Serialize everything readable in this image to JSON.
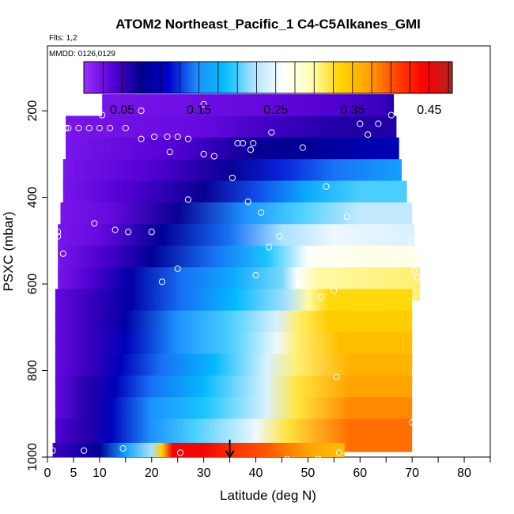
{
  "chart_data": {
    "type": "heatmap",
    "title": "ATOM2 Northeast_Pacific_1 C4-C5Alkanes_GMI",
    "flights_label": "Flts: 1,2",
    "mmdd_label": "MMDD: 0126,0129",
    "xlabel": "Latitude (deg N)",
    "ylabel": "PSXC (mbar)",
    "xlim": [
      0,
      85
    ],
    "ylim": [
      1000,
      50
    ],
    "y_reversed": true,
    "x_ticks": [
      0,
      5,
      10,
      20,
      30,
      40,
      50,
      60,
      70,
      80
    ],
    "x_minor_ticks": [
      15,
      25,
      35,
      45,
      55,
      65,
      75,
      85
    ],
    "y_ticks": [
      200,
      400,
      600,
      800,
      1000
    ],
    "grid": false,
    "colorbar": {
      "min": 0.0,
      "max": 0.48,
      "tick_values": [
        0.05,
        0.15,
        0.25,
        0.35,
        0.45
      ],
      "tick_labels": [
        "0.05",
        "0.15",
        "0.25",
        "0.35",
        "0.45"
      ],
      "boundaries": [
        0.1,
        0.2,
        0.3,
        0.4
      ],
      "colors": [
        "#9b30ff",
        "#5a00d8",
        "#00008b",
        "#0000cd",
        "#1e90ff",
        "#00bfff",
        "#b0e2ff",
        "#ffffff",
        "#ffffbb",
        "#ffd700",
        "#ffa500",
        "#ff4500",
        "#ff0000",
        "#b22222"
      ]
    },
    "bands": [
      {
        "p": 200,
        "lat_start": 10.5,
        "lat_end": 66.5,
        "stops": [
          [
            10.5,
            0.02
          ],
          [
            40,
            0.03
          ],
          [
            55,
            0.04
          ],
          [
            64,
            0.05
          ],
          [
            66.5,
            0.06
          ]
        ]
      },
      {
        "p": 250,
        "lat_start": 3.5,
        "lat_end": 67,
        "stops": [
          [
            3.5,
            0.02
          ],
          [
            30,
            0.03
          ],
          [
            45,
            0.05
          ],
          [
            55,
            0.06
          ],
          [
            67,
            0.06
          ]
        ]
      },
      {
        "p": 300,
        "lat_start": 3.5,
        "lat_end": 67.5,
        "stops": [
          [
            3.5,
            0.02
          ],
          [
            25,
            0.04
          ],
          [
            40,
            0.07
          ],
          [
            50,
            0.08
          ],
          [
            67.5,
            0.1
          ]
        ]
      },
      {
        "p": 350,
        "lat_start": 3,
        "lat_end": 68,
        "stops": [
          [
            3,
            0.02
          ],
          [
            20,
            0.04
          ],
          [
            35,
            0.07
          ],
          [
            45,
            0.12
          ],
          [
            55,
            0.14
          ],
          [
            68,
            0.16
          ]
        ]
      },
      {
        "p": 400,
        "lat_start": 3,
        "lat_end": 69,
        "stops": [
          [
            3,
            0.02
          ],
          [
            15,
            0.04
          ],
          [
            30,
            0.07
          ],
          [
            40,
            0.13
          ],
          [
            50,
            0.17
          ],
          [
            60,
            0.2
          ],
          [
            69,
            0.2
          ]
        ]
      },
      {
        "p": 450,
        "lat_start": 2.5,
        "lat_end": 70,
        "stops": [
          [
            2.5,
            0.02
          ],
          [
            12,
            0.03
          ],
          [
            25,
            0.07
          ],
          [
            38,
            0.15
          ],
          [
            48,
            0.2
          ],
          [
            60,
            0.23
          ],
          [
            70,
            0.23
          ]
        ]
      },
      {
        "p": 500,
        "lat_start": 2,
        "lat_end": 70.5,
        "stops": [
          [
            2,
            0.02
          ],
          [
            10,
            0.03
          ],
          [
            22,
            0.08
          ],
          [
            35,
            0.14
          ],
          [
            45,
            0.22
          ],
          [
            55,
            0.25
          ],
          [
            70.5,
            0.24
          ]
        ]
      },
      {
        "p": 550,
        "lat_start": 2,
        "lat_end": 71,
        "stops": [
          [
            2,
            0.02
          ],
          [
            10,
            0.04
          ],
          [
            20,
            0.08
          ],
          [
            32,
            0.14
          ],
          [
            42,
            0.19
          ],
          [
            50,
            0.26
          ],
          [
            60,
            0.27
          ],
          [
            71,
            0.27
          ]
        ]
      },
      {
        "p": 600,
        "lat_start": 2,
        "lat_end": 71.5,
        "stops": [
          [
            2,
            0.02
          ],
          [
            8,
            0.04
          ],
          [
            16,
            0.09
          ],
          [
            26,
            0.14
          ],
          [
            36,
            0.17
          ],
          [
            45,
            0.21
          ],
          [
            48,
            0.26
          ],
          [
            52,
            0.3
          ],
          [
            71.5,
            0.31
          ]
        ]
      },
      {
        "p": 650,
        "lat_start": 1.5,
        "lat_end": 70,
        "stops": [
          [
            1.5,
            0.03
          ],
          [
            8,
            0.05
          ],
          [
            16,
            0.09
          ],
          [
            26,
            0.14
          ],
          [
            36,
            0.18
          ],
          [
            46,
            0.22
          ],
          [
            50,
            0.3
          ],
          [
            54,
            0.33
          ],
          [
            70,
            0.33
          ]
        ]
      },
      {
        "p": 700,
        "lat_start": 1.5,
        "lat_end": 70,
        "stops": [
          [
            1.5,
            0.03
          ],
          [
            8,
            0.05
          ],
          [
            15,
            0.09
          ],
          [
            25,
            0.15
          ],
          [
            35,
            0.2
          ],
          [
            44,
            0.24
          ],
          [
            48,
            0.31
          ],
          [
            54,
            0.34
          ],
          [
            70,
            0.34
          ]
        ]
      },
      {
        "p": 750,
        "lat_start": 1.5,
        "lat_end": 70,
        "stops": [
          [
            1.5,
            0.03
          ],
          [
            8,
            0.05
          ],
          [
            15,
            0.1
          ],
          [
            25,
            0.15
          ],
          [
            35,
            0.2
          ],
          [
            44,
            0.25
          ],
          [
            48,
            0.31
          ],
          [
            56,
            0.35
          ],
          [
            70,
            0.35
          ]
        ]
      },
      {
        "p": 800,
        "lat_start": 1.5,
        "lat_end": 70,
        "stops": [
          [
            1.5,
            0.03
          ],
          [
            8,
            0.05
          ],
          [
            14,
            0.1
          ],
          [
            22,
            0.14
          ],
          [
            32,
            0.18
          ],
          [
            42,
            0.24
          ],
          [
            48,
            0.31
          ],
          [
            58,
            0.36
          ],
          [
            70,
            0.36
          ]
        ]
      },
      {
        "p": 850,
        "lat_start": 1.5,
        "lat_end": 70,
        "stops": [
          [
            1.5,
            0.03
          ],
          [
            8,
            0.06
          ],
          [
            13,
            0.1
          ],
          [
            20,
            0.14
          ],
          [
            30,
            0.18
          ],
          [
            42,
            0.24
          ],
          [
            48,
            0.32
          ],
          [
            58,
            0.37
          ],
          [
            70,
            0.37
          ]
        ]
      },
      {
        "p": 900,
        "lat_start": 1.5,
        "lat_end": 70,
        "stops": [
          [
            1.5,
            0.03
          ],
          [
            8,
            0.06
          ],
          [
            12,
            0.1
          ],
          [
            20,
            0.15
          ],
          [
            30,
            0.19
          ],
          [
            42,
            0.24
          ],
          [
            48,
            0.32
          ],
          [
            58,
            0.38
          ],
          [
            70,
            0.38
          ]
        ]
      },
      {
        "p": 950,
        "lat_start": 1.5,
        "lat_end": 70,
        "stops": [
          [
            1.5,
            0.04
          ],
          [
            8,
            0.06
          ],
          [
            12,
            0.1
          ],
          [
            20,
            0.15
          ],
          [
            28,
            0.2
          ],
          [
            40,
            0.25
          ],
          [
            46,
            0.32
          ],
          [
            58,
            0.39
          ],
          [
            70,
            0.39
          ]
        ]
      },
      {
        "p": 1000,
        "lat_start": 1,
        "lat_end": 57,
        "stops": [
          [
            1,
            0.05
          ],
          [
            10,
            0.08
          ],
          [
            15,
            0.16
          ],
          [
            20,
            0.22
          ],
          [
            22,
            0.34
          ],
          [
            24,
            0.45
          ],
          [
            30,
            0.45
          ],
          [
            35,
            0.42
          ],
          [
            42,
            0.4
          ],
          [
            50,
            0.37
          ],
          [
            57,
            0.35
          ]
        ]
      }
    ],
    "observations": [
      {
        "lat": 10.5,
        "p": 210
      },
      {
        "lat": 15,
        "p": 240
      },
      {
        "lat": 6,
        "p": 240
      },
      {
        "lat": 8,
        "p": 240
      },
      {
        "lat": 10,
        "p": 240
      },
      {
        "lat": 12,
        "p": 240
      },
      {
        "lat": 3.5,
        "p": 240
      },
      {
        "lat": 4,
        "p": 240
      },
      {
        "lat": 18,
        "p": 200
      },
      {
        "lat": 30,
        "p": 185
      },
      {
        "lat": 18,
        "p": 265
      },
      {
        "lat": 20.5,
        "p": 260
      },
      {
        "lat": 23,
        "p": 260
      },
      {
        "lat": 25,
        "p": 260
      },
      {
        "lat": 27,
        "p": 265
      },
      {
        "lat": 23.5,
        "p": 295
      },
      {
        "lat": 30,
        "p": 300
      },
      {
        "lat": 32,
        "p": 305
      },
      {
        "lat": 36.5,
        "p": 275
      },
      {
        "lat": 37.5,
        "p": 275
      },
      {
        "lat": 39.5,
        "p": 275
      },
      {
        "lat": 39,
        "p": 290
      },
      {
        "lat": 43,
        "p": 250
      },
      {
        "lat": 49,
        "p": 285
      },
      {
        "lat": 60,
        "p": 230
      },
      {
        "lat": 61.5,
        "p": 255
      },
      {
        "lat": 63.5,
        "p": 230
      },
      {
        "lat": 66,
        "p": 210
      },
      {
        "lat": 35.5,
        "p": 355
      },
      {
        "lat": 27,
        "p": 405
      },
      {
        "lat": 38.5,
        "p": 410
      },
      {
        "lat": 41,
        "p": 435
      },
      {
        "lat": 53.5,
        "p": 375
      },
      {
        "lat": 57.5,
        "p": 445
      },
      {
        "lat": 2,
        "p": 480
      },
      {
        "lat": 2,
        "p": 490
      },
      {
        "lat": 9,
        "p": 460
      },
      {
        "lat": 13,
        "p": 475
      },
      {
        "lat": 15.5,
        "p": 480
      },
      {
        "lat": 20,
        "p": 480
      },
      {
        "lat": 3,
        "p": 530
      },
      {
        "lat": 44.5,
        "p": 490
      },
      {
        "lat": 42.5,
        "p": 515
      },
      {
        "lat": 25,
        "p": 565
      },
      {
        "lat": 22,
        "p": 595
      },
      {
        "lat": 40,
        "p": 580
      },
      {
        "lat": 70,
        "p": 500
      },
      {
        "lat": 70.5,
        "p": 570
      },
      {
        "lat": 71,
        "p": 585
      },
      {
        "lat": 55,
        "p": 615
      },
      {
        "lat": 52.5,
        "p": 630
      },
      {
        "lat": 55.5,
        "p": 815
      },
      {
        "lat": 70,
        "p": 920
      },
      {
        "lat": 40,
        "p": 950
      },
      {
        "lat": 1,
        "p": 985
      },
      {
        "lat": 7,
        "p": 985
      },
      {
        "lat": 14.5,
        "p": 980
      },
      {
        "lat": 25.5,
        "p": 990
      },
      {
        "lat": 46,
        "p": 1005
      },
      {
        "lat": 52,
        "p": 1005
      },
      {
        "lat": 56,
        "p": 990
      }
    ],
    "marker_arrow_lat": 35
  }
}
